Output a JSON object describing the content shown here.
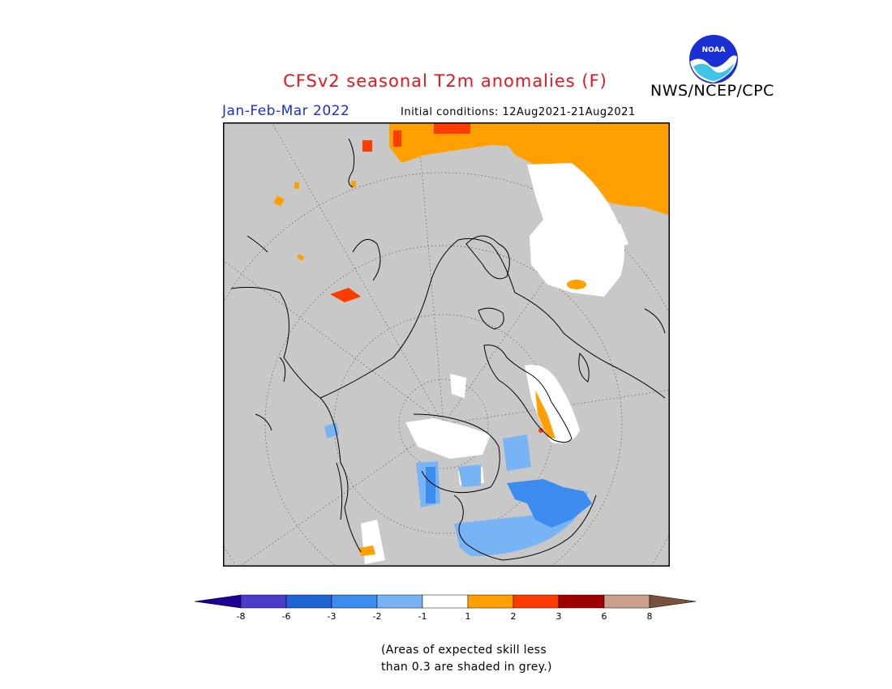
{
  "header": {
    "title": "CFSv2 seasonal T2m anomalies (F)",
    "agency": "NWS/NCEP/CPC",
    "logo_text": "NOAA"
  },
  "subheader": {
    "season": "Jan-Feb-Mar 2022",
    "initial_conditions": "Initial conditions: 12Aug2021-21Aug2021"
  },
  "map": {
    "projection": "north-polar-stereographic",
    "background_color": "#c8c8c8",
    "coastline_color": "#000000",
    "graticule_style": "dotted"
  },
  "legend": {
    "ticks": [
      "-8",
      "-6",
      "-3",
      "-2",
      "-1",
      "1",
      "2",
      "3",
      "6",
      "8"
    ],
    "colors": [
      "#1e0096",
      "#4a3cc8",
      "#1e64d2",
      "#3c8cf0",
      "#78b4f5",
      "#ffffff",
      "#ffa000",
      "#ff3c00",
      "#a00000",
      "#c8a08c",
      "#78503c"
    ]
  },
  "note": {
    "line1": "(Areas of expected skill less",
    "line2": "than 0.3 are shaded in grey.)"
  }
}
